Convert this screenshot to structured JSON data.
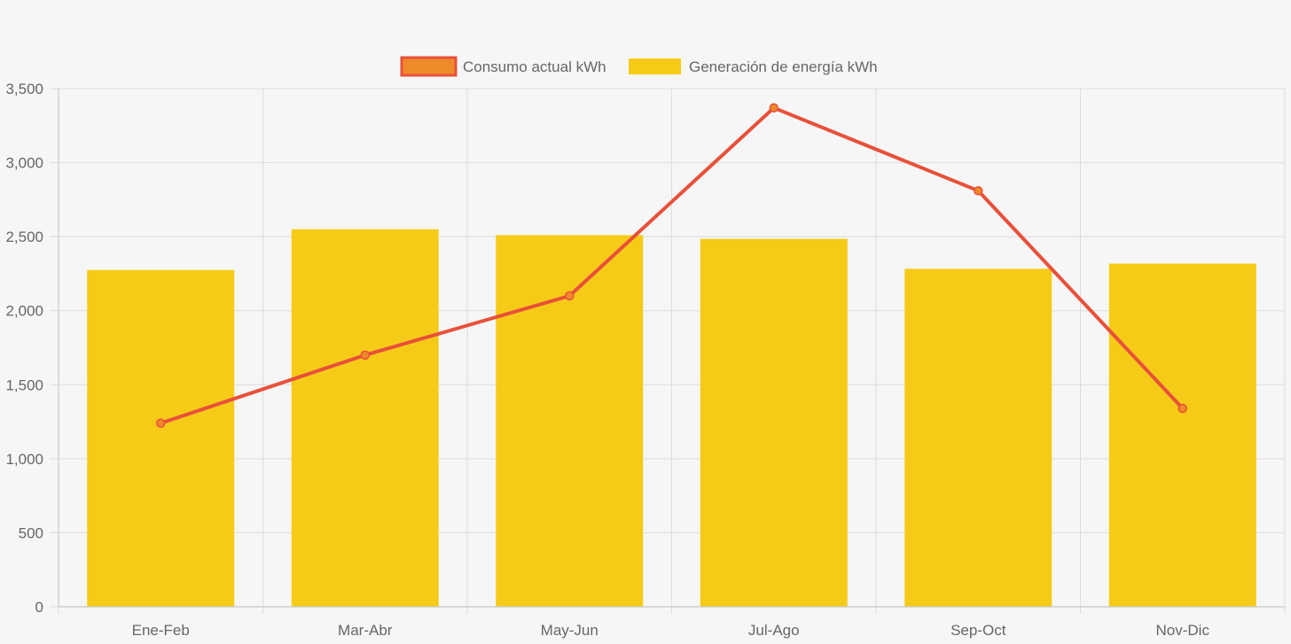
{
  "chart_data": {
    "type": "bar",
    "title": "",
    "xlabel": "",
    "ylabel": "",
    "categories": [
      "Ene-Feb",
      "Mar-Abr",
      "May-Jun",
      "Jul-Ago",
      "Sep-Oct",
      "Nov-Dic"
    ],
    "ylim": [
      0,
      3500
    ],
    "yticks": [
      0,
      500,
      1000,
      1500,
      2000,
      2500,
      3000,
      3500
    ],
    "ytick_labels": [
      "0",
      "500",
      "1,000",
      "1,500",
      "2,000",
      "2,500",
      "3,000",
      "3,500"
    ],
    "grid": true,
    "legend_position": "top-center",
    "series": [
      {
        "name": "Consumo actual kWh",
        "type": "line",
        "color": "#e8503a",
        "point_color": "#ee8a2a",
        "values": [
          1240,
          1700,
          2100,
          3370,
          2810,
          1340
        ]
      },
      {
        "name": "Generación de energía kWh",
        "type": "bar",
        "color": "#f6cb17",
        "values": [
          2275,
          2550,
          2510,
          2485,
          2283,
          2318
        ]
      }
    ]
  }
}
